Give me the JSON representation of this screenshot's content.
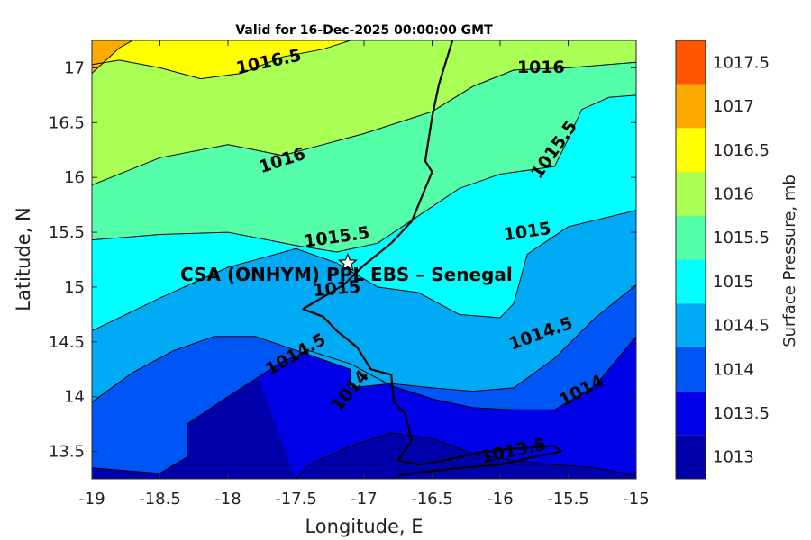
{
  "chart_data": {
    "type": "contour",
    "title": "Valid for 16-Dec-2025 00:00:00 GMT",
    "xlabel": "Longitude, E",
    "ylabel": "Latitude, N",
    "xlim": [
      -19,
      -15
    ],
    "ylim": [
      13.25,
      17.25
    ],
    "xticks": [
      -19,
      -18.5,
      -18,
      -17.5,
      -17,
      -16.5,
      -16,
      -15.5,
      -15
    ],
    "yticks": [
      13.5,
      14,
      14.5,
      15,
      15.5,
      16,
      16.5,
      17
    ],
    "colorbar": {
      "label": "Surface Pressure, mb",
      "levels": [
        1013,
        1013.5,
        1014,
        1014.5,
        1015,
        1015.5,
        1016,
        1016.5,
        1017,
        1017.5
      ],
      "colors": [
        "#0000aa",
        "#0000e8",
        "#0055f5",
        "#00aaf5",
        "#00ffff",
        "#55ffaa",
        "#aaff55",
        "#ffff00",
        "#ffaa00",
        "#ff5500"
      ]
    },
    "contours": [
      {
        "level": 1013.5,
        "points": [
          [
            -17.5,
            13.25
          ],
          [
            -17.4,
            13.38
          ],
          [
            -17.1,
            13.55
          ],
          [
            -16.8,
            13.67
          ],
          [
            -16.5,
            13.62
          ],
          [
            -16.2,
            13.48
          ],
          [
            -15.9,
            13.42
          ],
          [
            -15.6,
            13.38
          ],
          [
            -15.3,
            13.35
          ],
          [
            -15,
            13.28
          ]
        ]
      },
      {
        "level": 1014,
        "points": [
          [
            -19,
            13.35
          ],
          [
            -18.5,
            13.3
          ],
          [
            -18.3,
            13.45
          ],
          [
            -18.3,
            13.75
          ],
          [
            -18,
            14
          ],
          [
            -17.6,
            14.32
          ],
          [
            -17.4,
            14.42
          ],
          [
            -17.1,
            14.3
          ],
          [
            -16.8,
            14.1
          ],
          [
            -16.5,
            13.98
          ],
          [
            -16.2,
            13.9
          ],
          [
            -15.9,
            13.88
          ],
          [
            -15.6,
            13.88
          ],
          [
            -15.3,
            14.1
          ],
          [
            -15,
            14.55
          ]
        ]
      },
      {
        "level": 1014.5,
        "points": [
          [
            -19,
            13.95
          ],
          [
            -18.7,
            14.22
          ],
          [
            -18.4,
            14.42
          ],
          [
            -18.1,
            14.55
          ],
          [
            -17.8,
            14.55
          ],
          [
            -17.4,
            14.38
          ],
          [
            -17.1,
            14.25
          ],
          [
            -17.1,
            14.08
          ],
          [
            -16.8,
            14.12
          ],
          [
            -16.5,
            14.08
          ],
          [
            -16.2,
            14.05
          ],
          [
            -15.9,
            14.08
          ],
          [
            -15.6,
            14.35
          ],
          [
            -15.3,
            14.72
          ],
          [
            -15,
            15.02
          ]
        ]
      },
      {
        "level": 1015,
        "points": [
          [
            -19,
            14.6
          ],
          [
            -18.5,
            14.9
          ],
          [
            -18,
            15.18
          ],
          [
            -17.5,
            15.35
          ],
          [
            -17.2,
            15.22
          ],
          [
            -16.9,
            15.0
          ],
          [
            -16.6,
            14.95
          ],
          [
            -16.3,
            14.75
          ],
          [
            -16,
            14.72
          ],
          [
            -15.9,
            14.85
          ],
          [
            -15.8,
            15.3
          ],
          [
            -15.5,
            15.55
          ],
          [
            -15,
            15.7
          ]
        ]
      },
      {
        "level": 1015.5,
        "points": [
          [
            -19,
            15.43
          ],
          [
            -18.5,
            15.48
          ],
          [
            -18,
            15.5
          ],
          [
            -17.5,
            15.38
          ],
          [
            -17.2,
            15.32
          ],
          [
            -16.9,
            15.4
          ],
          [
            -16.6,
            15.65
          ],
          [
            -16.3,
            15.9
          ],
          [
            -16,
            16.03
          ],
          [
            -15.6,
            16.1
          ],
          [
            -15.5,
            16.35
          ],
          [
            -15.4,
            16.62
          ],
          [
            -15.2,
            16.73
          ],
          [
            -15,
            16.75
          ]
        ]
      },
      {
        "level": 1016,
        "points": [
          [
            -19,
            15.93
          ],
          [
            -18.5,
            16.18
          ],
          [
            -18,
            16.3
          ],
          [
            -17.6,
            16.2
          ],
          [
            -17.3,
            16.3
          ],
          [
            -17,
            16.4
          ],
          [
            -16.5,
            16.6
          ],
          [
            -16.2,
            16.83
          ],
          [
            -15.9,
            16.98
          ],
          [
            -15.5,
            17.0
          ],
          [
            -15,
            17.05
          ]
        ]
      },
      {
        "level": 1016.5,
        "points": [
          [
            -19,
            17.03
          ],
          [
            -18.8,
            17.07
          ],
          [
            -18.5,
            17.0
          ],
          [
            -18.2,
            16.9
          ],
          [
            -17.9,
            16.95
          ],
          [
            -17.6,
            17.1
          ],
          [
            -17.3,
            17.17
          ],
          [
            -17.1,
            17.25
          ]
        ]
      },
      {
        "level": 1017,
        "points": [
          [
            -19,
            16.95
          ],
          [
            -18.8,
            17.18
          ],
          [
            -18.7,
            17.25
          ]
        ]
      }
    ],
    "contour_labels": [
      {
        "text": "1016.5",
        "x": -17.7,
        "y": 17.05
      },
      {
        "text": "1016",
        "x": -15.7,
        "y": 17.0
      },
      {
        "text": "1016",
        "x": -17.6,
        "y": 16.15
      },
      {
        "text": "1015.5",
        "x": -15.6,
        "y": 16.25
      },
      {
        "text": "1015.5",
        "x": -17.2,
        "y": 15.45
      },
      {
        "text": "1015",
        "x": -15.8,
        "y": 15.5
      },
      {
        "text": "1015",
        "x": -17.2,
        "y": 14.98
      },
      {
        "text": "1014.5",
        "x": -17.5,
        "y": 14.38
      },
      {
        "text": "1014.5",
        "x": -15.7,
        "y": 14.57
      },
      {
        "text": "1014",
        "x": -17.1,
        "y": 14.05
      },
      {
        "text": "1014",
        "x": -15.4,
        "y": 14.05
      },
      {
        "text": "1013.5",
        "x": -15.9,
        "y": 13.5
      }
    ],
    "coastline": [
      [
        -16.35,
        17.25
      ],
      [
        -16.45,
        16.85
      ],
      [
        -16.5,
        16.55
      ],
      [
        -16.55,
        16.15
      ],
      [
        -16.5,
        16.05
      ],
      [
        -16.55,
        15.9
      ],
      [
        -16.65,
        15.6
      ],
      [
        -16.8,
        15.4
      ],
      [
        -17.0,
        15.2
      ],
      [
        -17.15,
        15.02
      ],
      [
        -17.45,
        14.8
      ],
      [
        -17.3,
        14.73
      ],
      [
        -17.2,
        14.6
      ],
      [
        -17.05,
        14.45
      ],
      [
        -16.95,
        14.25
      ],
      [
        -16.8,
        14.2
      ],
      [
        -16.78,
        13.95
      ],
      [
        -16.7,
        13.85
      ],
      [
        -16.65,
        13.6
      ],
      [
        -16.75,
        13.42
      ],
      [
        -16.6,
        13.38
      ],
      [
        -16.4,
        13.42
      ],
      [
        -16.2,
        13.48
      ],
      [
        -15.95,
        13.52
      ],
      [
        -15.6,
        13.55
      ],
      [
        -15.55,
        13.5
      ],
      [
        -15.75,
        13.45
      ],
      [
        -16.0,
        13.38
      ],
      [
        -16.3,
        13.35
      ],
      [
        -16.65,
        13.3
      ],
      [
        -16.75,
        13.28
      ]
    ],
    "station": {
      "label": "CSA (ONHYM) PPL EBS  – Senegal",
      "lon": -17.12,
      "lat": 15.22
    }
  }
}
